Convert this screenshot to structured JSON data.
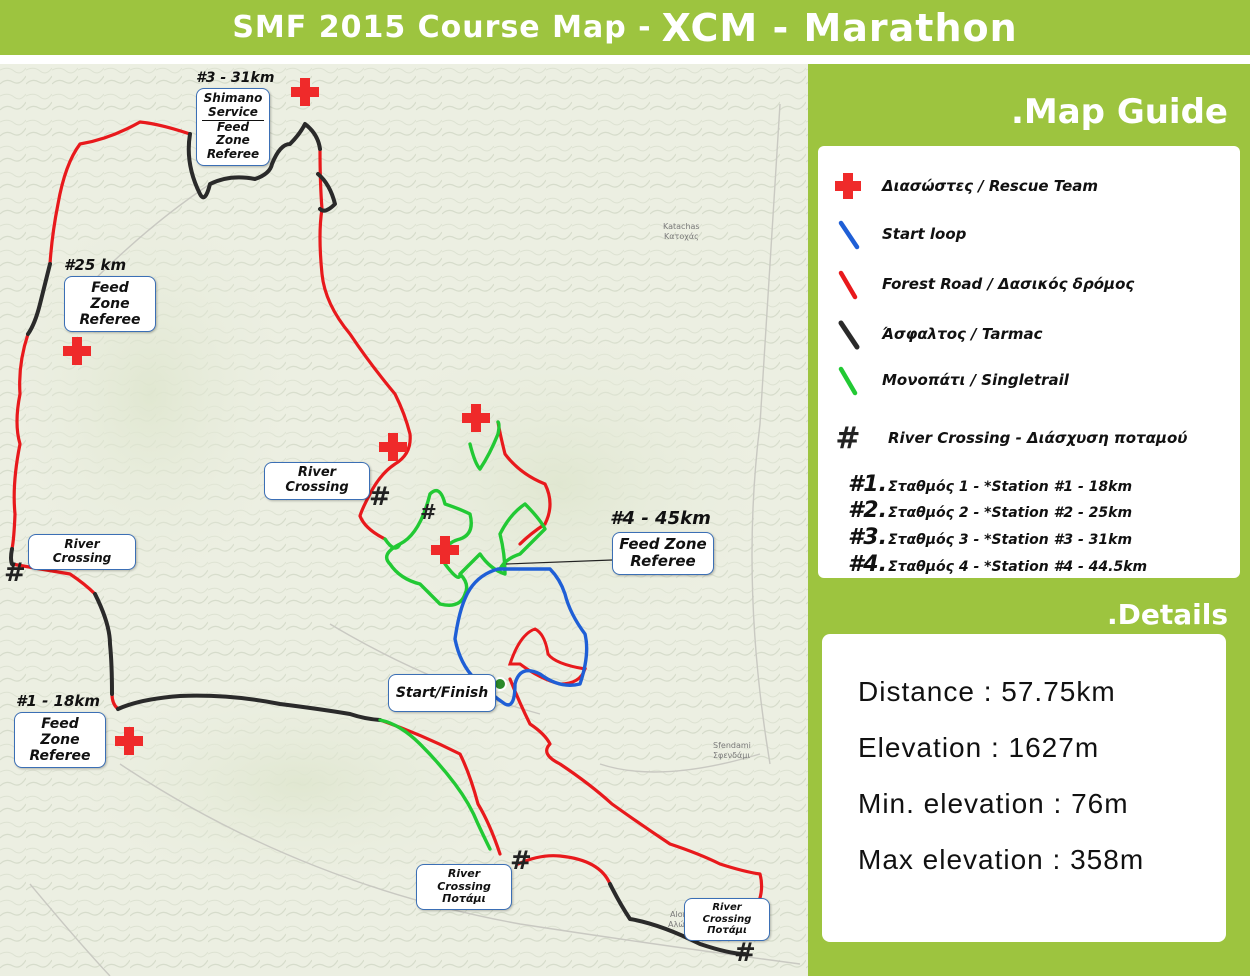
{
  "title": {
    "left": "SMF 2015 Course Map -",
    "right": "XCM - Marathon"
  },
  "map_guide": {
    "heading": ".Map Guide",
    "legend": [
      {
        "icon": "red-cross-icon",
        "label": "Διασώστες / Rescue Team",
        "color": "#ef2a2a"
      },
      {
        "icon": "blue-line-icon",
        "label": "Start loop",
        "color": "#1f5fd6"
      },
      {
        "icon": "red-line-icon",
        "label": "Forest Road / Δασικός δρόμος",
        "color": "#e8191c"
      },
      {
        "icon": "black-line-icon",
        "label": "Άσφαλτος / Tarmac",
        "color": "#2a2a2a"
      },
      {
        "icon": "green-line-icon",
        "label": "Μονοπάτι / Singletrail",
        "color": "#22c934"
      },
      {
        "icon": "hash-icon",
        "label": "River Crossing - Διάσχυση ποταμού",
        "color": "#222222"
      }
    ],
    "stations": [
      {
        "num": "#1.",
        "text": "Σταθμός 1 - *Station #1 - 18km"
      },
      {
        "num": "#2.",
        "text": "Σταθμός 2 - *Station #2 - 25km"
      },
      {
        "num": "#3.",
        "text": "Σταθμός 3 - *Station #3 - 31km"
      },
      {
        "num": "#4.",
        "text": "Σταθμός 4 - *Station #4 - 44.5km"
      }
    ]
  },
  "details": {
    "heading": ".Details",
    "lines": [
      "Distance : 57.75km",
      "Elevation : 1627m",
      "Min. elevation : 76m",
      "Max elevation : 358m"
    ]
  },
  "map": {
    "station3_km": "#3 - 31km",
    "station3_box": [
      "Shimano",
      "Service",
      "Feed Zone",
      "Referee"
    ],
    "station2_km": "#25 km",
    "station2_box": [
      "Feed Zone",
      "Referee"
    ],
    "station1_km": "#1 - 18km",
    "station1_box": [
      "Feed Zone",
      "Referee"
    ],
    "station4_km": "#4 - 45km",
    "station4_box": [
      "Feed Zone",
      "Referee"
    ],
    "river_crossing_mid": "River Crossing",
    "river_crossing_left": "River Crossing",
    "river_crossing_south": [
      "River Crossing",
      "Ποτάμι"
    ],
    "river_crossing_east": [
      "River Crossing",
      "Ποτάμι"
    ],
    "start_finish": "Start/Finish",
    "places": [
      "Katachas",
      "Κατοχάς",
      "Sfendami",
      "Σφενδάμι",
      "Alonia",
      "Αλώνια"
    ]
  },
  "colors": {
    "panel_green": "#9dc43f",
    "forest_road": "#e8191c",
    "tarmac": "#2a2a2a",
    "singletrail": "#22c934",
    "start_loop": "#1f5fd6",
    "rescue": "#ef2a2a"
  }
}
